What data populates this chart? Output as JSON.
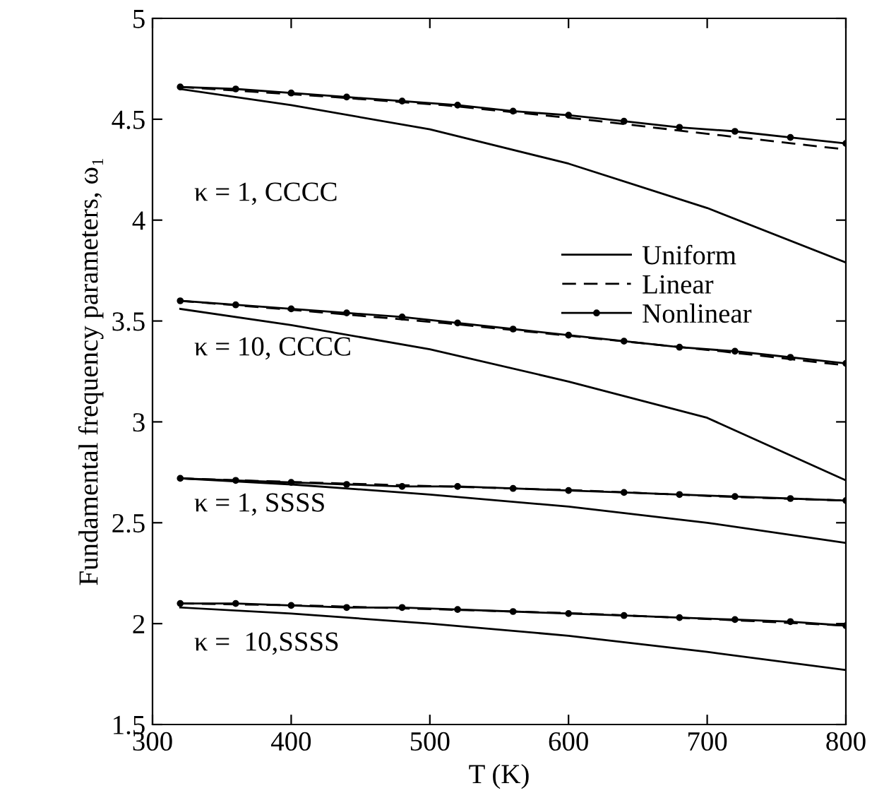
{
  "chart_data": {
    "type": "line",
    "xlabel": "T (K)",
    "ylabel": "Fundamental frequency parameters, ω₁",
    "x": [
      320,
      400,
      500,
      600,
      700,
      800
    ],
    "xlim": [
      300,
      800
    ],
    "ylim": [
      1.5,
      5
    ],
    "xticks": [
      300,
      400,
      500,
      600,
      700,
      800
    ],
    "yticks": [
      1.5,
      2,
      2.5,
      3,
      3.5,
      4,
      4.5,
      5
    ],
    "grid": false,
    "legend": "right",
    "series": [
      {
        "name": "Uniform",
        "color": "#000000",
        "line_style": "solid",
        "marker": "none",
        "values": [
          4.65,
          4.57,
          4.45,
          4.28,
          4.06,
          3.79
        ]
      },
      {
        "name": "Linear",
        "color": "#000000",
        "line_style": "dashed",
        "marker": "none",
        "x": [
          320,
          410,
          510,
          610,
          710,
          800
        ],
        "values": [
          4.66,
          4.62,
          4.57,
          4.5,
          4.42,
          4.35
        ]
      },
      {
        "name": "Nonlinear",
        "color": "#000000",
        "line_style": "solid",
        "marker": "circle",
        "x": [
          320,
          360,
          400,
          440,
          480,
          520,
          560,
          600,
          640,
          680,
          720,
          760,
          800
        ],
        "values": [
          4.66,
          4.65,
          4.63,
          4.61,
          4.59,
          4.57,
          4.54,
          4.52,
          4.49,
          4.46,
          4.44,
          4.41,
          4.38
        ]
      },
      {
        "color": "#000000",
        "line_style": "solid",
        "marker": "none",
        "values": [
          3.56,
          3.48,
          3.36,
          3.2,
          3.02,
          2.71
        ]
      },
      {
        "color": "#000000",
        "line_style": "dashed",
        "marker": "none",
        "x": [
          320,
          410,
          510,
          610,
          710,
          800
        ],
        "values": [
          3.6,
          3.55,
          3.49,
          3.42,
          3.35,
          3.28
        ]
      },
      {
        "color": "#000000",
        "line_style": "solid",
        "marker": "circle",
        "x": [
          320,
          360,
          400,
          440,
          480,
          520,
          560,
          600,
          640,
          680,
          720,
          760,
          800
        ],
        "values": [
          3.6,
          3.58,
          3.56,
          3.54,
          3.52,
          3.49,
          3.46,
          3.43,
          3.4,
          3.37,
          3.35,
          3.32,
          3.29
        ]
      },
      {
        "color": "#000000",
        "line_style": "solid",
        "marker": "none",
        "values": [
          2.72,
          2.69,
          2.64,
          2.58,
          2.5,
          2.4
        ]
      },
      {
        "color": "#000000",
        "line_style": "dashed",
        "marker": "none",
        "x": [
          320,
          410,
          510,
          610,
          710,
          800
        ],
        "values": [
          2.72,
          2.7,
          2.68,
          2.66,
          2.63,
          2.61
        ]
      },
      {
        "color": "#000000",
        "line_style": "solid",
        "marker": "circle",
        "x": [
          320,
          360,
          400,
          440,
          480,
          520,
          560,
          600,
          640,
          680,
          720,
          760,
          800
        ],
        "values": [
          2.72,
          2.71,
          2.7,
          2.69,
          2.68,
          2.68,
          2.67,
          2.66,
          2.65,
          2.64,
          2.63,
          2.62,
          2.61
        ]
      },
      {
        "color": "#000000",
        "line_style": "solid",
        "marker": "none",
        "values": [
          2.08,
          2.05,
          2.0,
          1.94,
          1.86,
          1.77
        ]
      },
      {
        "color": "#000000",
        "line_style": "dashed",
        "marker": "none",
        "x": [
          320,
          410,
          510,
          610,
          710,
          800
        ],
        "values": [
          2.1,
          2.09,
          2.07,
          2.05,
          2.02,
          1.99
        ]
      },
      {
        "color": "#000000",
        "line_style": "solid",
        "marker": "circle",
        "x": [
          320,
          360,
          400,
          440,
          480,
          520,
          560,
          600,
          640,
          680,
          720,
          760,
          800
        ],
        "values": [
          2.1,
          2.1,
          2.09,
          2.08,
          2.08,
          2.07,
          2.06,
          2.05,
          2.04,
          2.03,
          2.02,
          2.01,
          1.99
        ]
      }
    ],
    "annotations": [
      "κ = 1, CCCC",
      "κ = 10, CCCC",
      "κ = 1, SSSS",
      "κ =  10,SSSS"
    ]
  }
}
